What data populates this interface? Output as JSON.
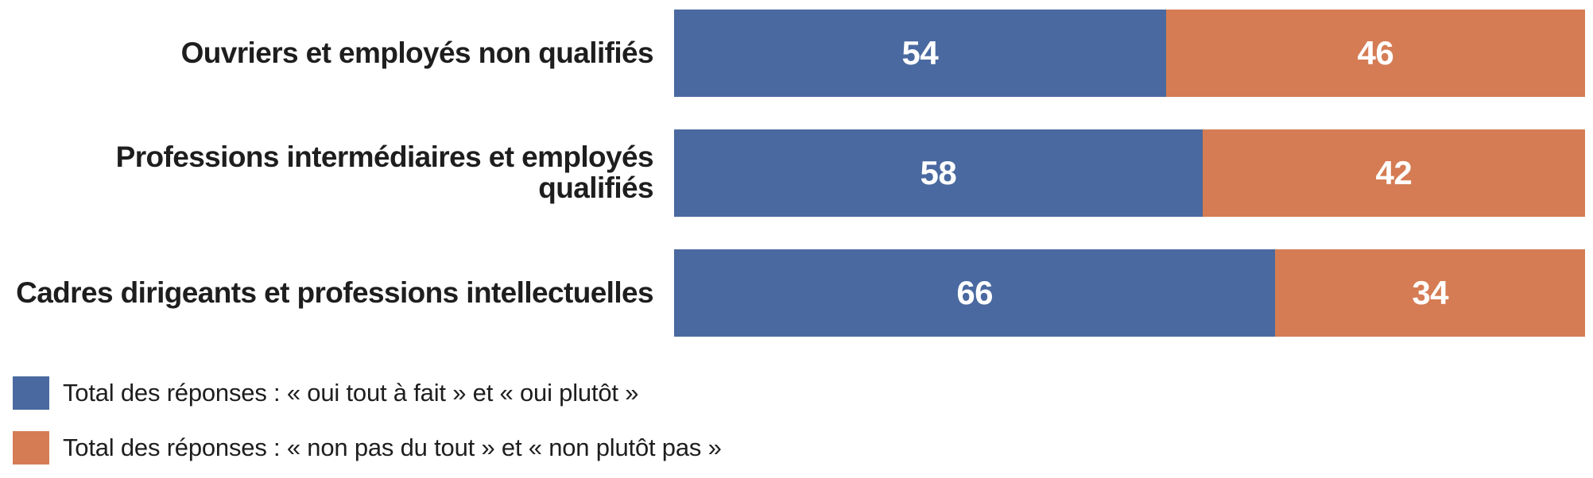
{
  "chart_data": {
    "type": "bar",
    "variant": "horizontal-stacked-100",
    "title": "",
    "categories": [
      "Ouvriers et employés non qualifiés",
      "Professions intermédiaires et employés qualifiés",
      "Cadres dirigeants et professions intellectuelles"
    ],
    "series": [
      {
        "name": "Total des réponses : « oui tout à fait » et « oui plutôt »",
        "color": "#4A69A0",
        "values": [
          54,
          58,
          66
        ]
      },
      {
        "name": "Total des réponses : « non pas du tout » et « non plutôt pas »",
        "color": "#D57C54",
        "values": [
          46,
          42,
          34
        ]
      }
    ],
    "value_range": [
      0,
      100
    ],
    "grid": false,
    "legend_position": "bottom-left",
    "value_label_color": "#FFFFFF"
  },
  "colors": {
    "background": "#FFFFFF",
    "label_text": "#1E1E1E",
    "series_oui": "#4A69A0",
    "series_non": "#D57C54"
  }
}
